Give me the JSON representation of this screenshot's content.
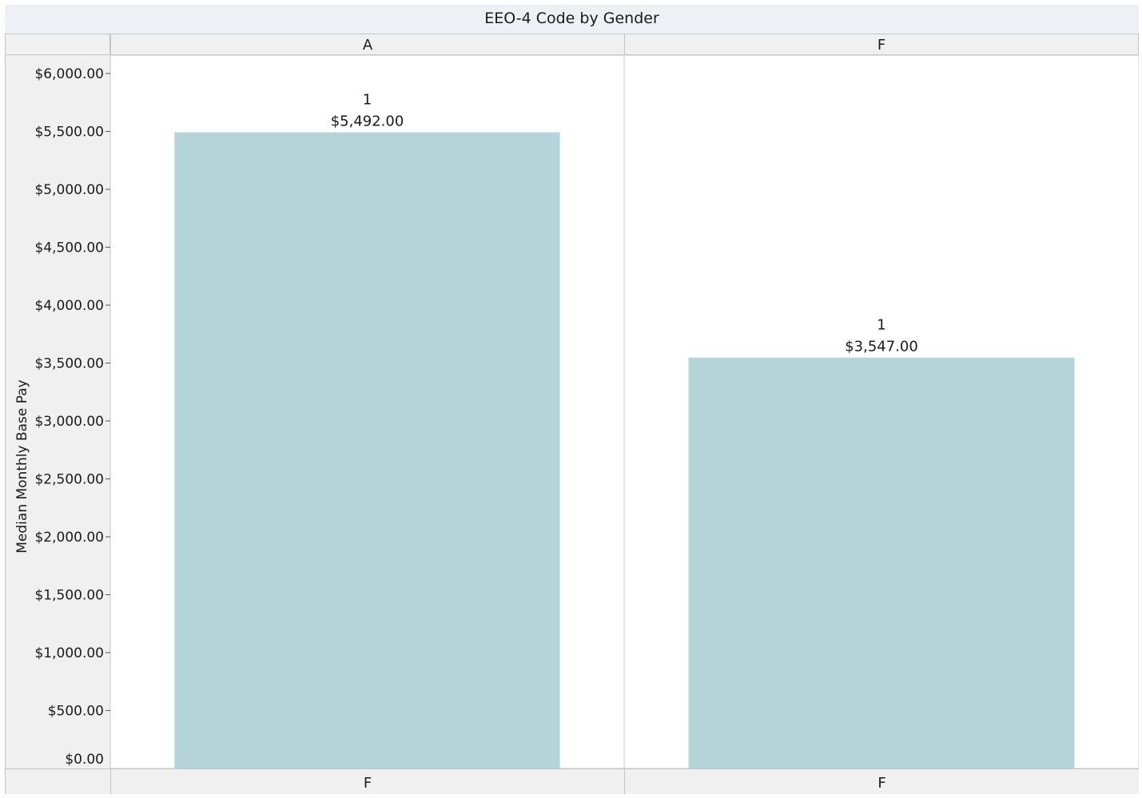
{
  "chart_data": {
    "type": "bar",
    "title": "EEO-4 Code by Gender",
    "ylabel": "Median Monthly Base Pay",
    "xlabel": "",
    "ylim": [
      0,
      6000
    ],
    "yticks": [
      0,
      500,
      1000,
      1500,
      2000,
      2500,
      3000,
      3500,
      4000,
      4500,
      5000,
      5500,
      6000
    ],
    "ytick_labels": [
      "$0.00",
      "$500.00",
      "$1,000.00",
      "$1,500.00",
      "$2,000.00",
      "$2,500.00",
      "$3,000.00",
      "$3,500.00",
      "$4,000.00",
      "$4,500.00",
      "$5,000.00",
      "$5,500.00",
      "$6,000.00"
    ],
    "grid": false,
    "bar_color": "#b5d4d9",
    "panels": [
      {
        "header": "A",
        "footer": "F",
        "value": 5492,
        "count_label": "1",
        "value_label": "$5,492.00"
      },
      {
        "header": "F",
        "footer": "F",
        "value": 3547,
        "count_label": "1",
        "value_label": "$3,547.00"
      }
    ]
  }
}
